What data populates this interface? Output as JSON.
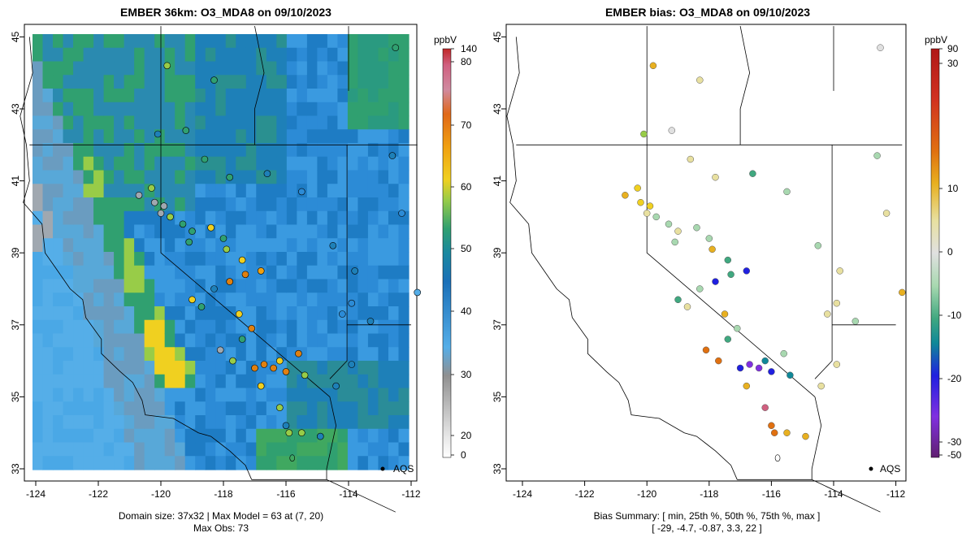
{
  "chart_data": [
    {
      "type": "heatmap",
      "title": "EMBER 36km: O3_MDA8 on 09/10/2023",
      "xlim": [
        -124.3,
        -111.8
      ],
      "ylim": [
        32.8,
        45.3
      ],
      "x_ticks": [
        "-124",
        "-122",
        "-120",
        "-118",
        "-116",
        "-114",
        "-112"
      ],
      "y_ticks": [
        "33",
        "35",
        "37",
        "39",
        "41",
        "43",
        "45"
      ],
      "colorbar": {
        "unit": "ppbV",
        "ticks": [
          "0",
          "20",
          "30",
          "40",
          "50",
          "60",
          "70",
          "80",
          "140"
        ]
      },
      "annotation": "AQS",
      "footer_lines": [
        "Domain size: 37x32 | Max Model = 63 at (7, 20)",
        "Max Obs: 73"
      ]
    },
    {
      "type": "scatter",
      "title": "EMBER bias: O3_MDA8 on 09/10/2023",
      "xlim": [
        -124.3,
        -111.8
      ],
      "ylim": [
        32.8,
        45.3
      ],
      "x_ticks": [
        "-124",
        "-122",
        "-120",
        "-118",
        "-116",
        "-114",
        "-112"
      ],
      "y_ticks": [
        "33",
        "35",
        "37",
        "39",
        "41",
        "43",
        "45"
      ],
      "colorbar": {
        "unit": "ppbV",
        "ticks": [
          "90",
          "30",
          "10",
          "0",
          "-10",
          "-20",
          "-30",
          "-50"
        ]
      },
      "annotation": "AQS",
      "bias_summary": {
        "min": -29,
        "p25": -4.7,
        "p50": -0.87,
        "p75": 3.3,
        "max": 22
      },
      "footer_lines": [
        "Bias Summary: [ min, 25th %, 50th %, 75th %, max ]",
        "[ -29,   -4.7,   -0.87,   3.3,   22 ]"
      ]
    }
  ],
  "colors": {
    "ocean_blue": "#55aee8",
    "mid_blue": "#2c8bd6",
    "deep_blue": "#1a70b8",
    "green": "#30a070",
    "yellow_green": "#98cc48",
    "yellow": "#f0d020",
    "orange": "#e08010",
    "gray": "#a0a8b0"
  }
}
